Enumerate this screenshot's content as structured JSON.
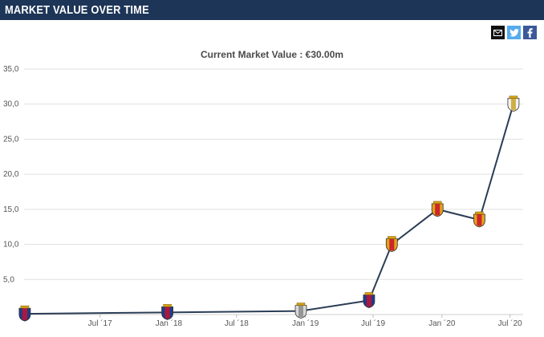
{
  "header": {
    "title": "MARKET VALUE OVER TIME"
  },
  "share": {
    "mail_icon": "mail-icon",
    "twitter_icon": "twitter-icon",
    "facebook_icon": "facebook-icon"
  },
  "chart_data": {
    "type": "line",
    "title": "",
    "subtitle": "Current Market Value : €30.00m",
    "xlabel": "",
    "ylabel": "",
    "ylim": [
      0,
      35
    ],
    "grid": true,
    "y_ticks": [
      5,
      10,
      15,
      20,
      25,
      30,
      35
    ],
    "y_tick_labels": [
      "5,0",
      "10,0",
      "15,0",
      "20,0",
      "25,0",
      "30,0",
      "35,0"
    ],
    "x_range": [
      "2016-12-10",
      "2020-08-05"
    ],
    "x_ticks": [
      "2017-07-01",
      "2018-01-01",
      "2018-07-01",
      "2019-01-01",
      "2019-07-01",
      "2020-01-01",
      "2020-07-01"
    ],
    "x_tick_labels": [
      "Jul ´17",
      "Jan ´18",
      "Jul ´18",
      "Jan ´19",
      "Jul ´19",
      "Jan ´20",
      "Jul ´20"
    ],
    "series": [
      {
        "x": [
          "2016-12-12",
          "2017-12-28",
          "2018-12-20",
          "2019-06-20",
          "2019-08-20",
          "2019-12-20",
          "2020-04-10",
          "2020-07-10"
        ],
        "values": [
          0.1,
          0.3,
          0.5,
          2.0,
          10.0,
          15.0,
          13.5,
          30.0
        ],
        "club_badges": [
          "club-badge-icon",
          "club-badge-icon",
          "club-badge-icon",
          "club-badge-icon",
          "club-badge-icon",
          "club-badge-icon",
          "club-badge-icon",
          "club-badge-icon"
        ]
      }
    ],
    "colors": {
      "line": "#2b3d55",
      "grid": "#e0e0e0",
      "header": "#1d3557"
    }
  }
}
